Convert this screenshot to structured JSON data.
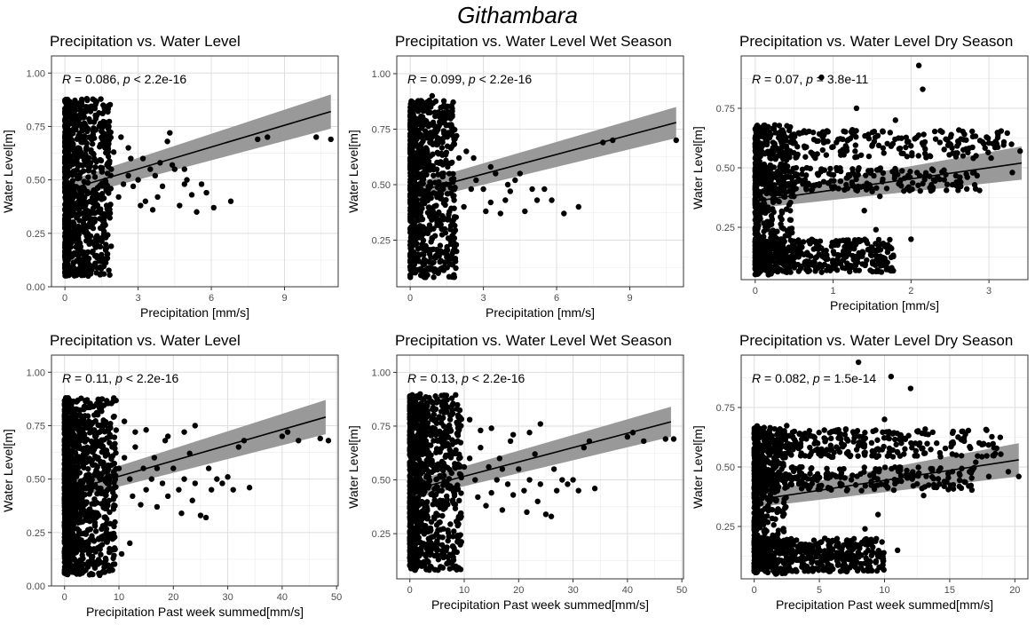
{
  "figure": {
    "title": "Githambara"
  },
  "chart_data": [
    {
      "type": "scatter",
      "title": "Precipitation vs. Water Level",
      "xlabel": "Precipitation [mm/s]",
      "ylabel": "Water Level[m]",
      "annotation": {
        "r_label": "R",
        "r_text": " = 0.086, ",
        "p_label": "p",
        "p_text": " < 2.2e-16"
      },
      "xlim": [
        -0.55,
        11.2
      ],
      "ylim": [
        0.0,
        1.08
      ],
      "xticks": [
        0,
        3,
        6,
        9
      ],
      "xtick_labels": [
        "0",
        "3",
        "6",
        "9"
      ],
      "yticks": [
        0.0,
        0.25,
        0.5,
        0.75,
        1.0
      ],
      "ytick_labels": [
        "0.00",
        "0.25",
        "0.50",
        "0.75",
        "1.00"
      ],
      "grid": true,
      "fit": {
        "x0": 0,
        "y0": 0.45,
        "x1": 10.9,
        "y1": 0.82,
        "band_start": 0.04,
        "band_end": 0.08
      },
      "cloud": {
        "x_max": 1.9,
        "ymin": 0.05,
        "ymax": 0.88,
        "density": 900
      },
      "outliers": [
        [
          1.05,
          0.58
        ],
        [
          1.2,
          0.6
        ],
        [
          1.5,
          0.55
        ],
        [
          1.7,
          0.45
        ],
        [
          1.9,
          0.55
        ],
        [
          2.0,
          0.63
        ],
        [
          2.2,
          0.42
        ],
        [
          2.4,
          0.48
        ],
        [
          2.6,
          0.52
        ],
        [
          2.8,
          0.47
        ],
        [
          3.0,
          0.5
        ],
        [
          3.1,
          0.38
        ],
        [
          3.3,
          0.4
        ],
        [
          3.5,
          0.55
        ],
        [
          3.6,
          0.36
        ],
        [
          3.8,
          0.42
        ],
        [
          4.0,
          0.47
        ],
        [
          4.2,
          0.68
        ],
        [
          4.3,
          0.72
        ],
        [
          4.5,
          0.55
        ],
        [
          4.7,
          0.38
        ],
        [
          4.9,
          0.48
        ],
        [
          5.0,
          0.5
        ],
        [
          5.2,
          0.43
        ],
        [
          5.4,
          0.35
        ],
        [
          5.6,
          0.48
        ],
        [
          6.1,
          0.37
        ],
        [
          6.8,
          0.4
        ],
        [
          7.9,
          0.69
        ],
        [
          8.3,
          0.7
        ],
        [
          10.3,
          0.7
        ],
        [
          10.9,
          0.69
        ],
        [
          2.7,
          0.6
        ],
        [
          3.9,
          0.58
        ],
        [
          1.8,
          0.75
        ],
        [
          2.3,
          0.7
        ],
        [
          2.6,
          0.65
        ],
        [
          1.3,
          0.8
        ],
        [
          0.9,
          0.88
        ],
        [
          1.0,
          0.2
        ],
        [
          1.5,
          0.15
        ],
        [
          1.7,
          0.18
        ],
        [
          1.4,
          0.12
        ],
        [
          3.2,
          0.6
        ],
        [
          3.7,
          0.52
        ],
        [
          4.4,
          0.57
        ],
        [
          4.9,
          0.55
        ],
        [
          5.8,
          0.44
        ]
      ]
    },
    {
      "type": "scatter",
      "title": "Precipitation vs. Water Level Wet Season",
      "xlabel": "Precipitation [mm/s]",
      "ylabel": "Water Level[m]",
      "annotation": {
        "r_label": "R",
        "r_text": " = 0.099, ",
        "p_label": "p",
        "p_text": " < 2.2e-16"
      },
      "xlim": [
        -0.55,
        11.2
      ],
      "ylim": [
        0.04,
        1.08
      ],
      "xticks": [
        0,
        3,
        6,
        9
      ],
      "xtick_labels": [
        "0",
        "3",
        "6",
        "9"
      ],
      "yticks": [
        0.25,
        0.5,
        0.75,
        1.0
      ],
      "ytick_labels": [
        "0.25",
        "0.50",
        "0.75",
        "1.00"
      ],
      "grid": true,
      "fit": {
        "x0": 0,
        "y0": 0.46,
        "x1": 10.9,
        "y1": 0.78,
        "band_start": 0.04,
        "band_end": 0.07
      },
      "cloud": {
        "x_max": 1.9,
        "ymin": 0.08,
        "ymax": 0.88,
        "density": 800
      },
      "outliers": [
        [
          1.1,
          0.6
        ],
        [
          1.3,
          0.55
        ],
        [
          1.6,
          0.5
        ],
        [
          1.8,
          0.43
        ],
        [
          2.0,
          0.62
        ],
        [
          2.2,
          0.4
        ],
        [
          2.5,
          0.48
        ],
        [
          2.7,
          0.52
        ],
        [
          3.0,
          0.48
        ],
        [
          3.1,
          0.38
        ],
        [
          3.3,
          0.42
        ],
        [
          3.5,
          0.55
        ],
        [
          3.7,
          0.37
        ],
        [
          3.9,
          0.43
        ],
        [
          4.1,
          0.47
        ],
        [
          4.3,
          0.52
        ],
        [
          4.5,
          0.55
        ],
        [
          4.7,
          0.38
        ],
        [
          5.0,
          0.48
        ],
        [
          5.2,
          0.43
        ],
        [
          5.5,
          0.48
        ],
        [
          5.8,
          0.43
        ],
        [
          6.3,
          0.37
        ],
        [
          6.9,
          0.4
        ],
        [
          7.9,
          0.69
        ],
        [
          8.3,
          0.7
        ],
        [
          10.9,
          0.7
        ],
        [
          2.6,
          0.62
        ],
        [
          1.9,
          0.72
        ],
        [
          2.3,
          0.65
        ],
        [
          1.4,
          0.78
        ],
        [
          0.9,
          0.9
        ],
        [
          1.0,
          0.12
        ],
        [
          1.4,
          0.13
        ],
        [
          3.3,
          0.58
        ],
        [
          4.0,
          0.5
        ]
      ]
    },
    {
      "type": "scatter",
      "title": "Precipitation vs. Water Level Dry Season",
      "xlabel": "Precipitation [mm/s]",
      "ylabel": "Water Level[m]",
      "annotation": {
        "r_label": "R",
        "r_text": " = 0.07, ",
        "p_label": "p",
        "p_text": " = 3.8e-11"
      },
      "xlim": [
        -0.18,
        3.5
      ],
      "ylim": [
        0.03,
        0.97
      ],
      "xticks": [
        0,
        1,
        2,
        3
      ],
      "xtick_labels": [
        "0",
        "1",
        "2",
        "3"
      ],
      "yticks": [
        0.25,
        0.5,
        0.75
      ],
      "ytick_labels": [
        "0.25",
        "0.50",
        "0.75"
      ],
      "grid": true,
      "fit": {
        "x0": 0,
        "y0": 0.36,
        "x1": 3.42,
        "y1": 0.52,
        "band_start": 0.03,
        "band_end": 0.07
      },
      "bands": [
        {
          "x_max": 3.3,
          "y": 0.6,
          "spread": 0.06,
          "n": 260
        },
        {
          "x_max": 2.9,
          "y": 0.45,
          "spread": 0.05,
          "n": 240
        },
        {
          "x_max": 1.8,
          "y": 0.13,
          "spread": 0.07,
          "n": 420
        }
      ],
      "cloud": {
        "x_max": 0.5,
        "ymin": 0.05,
        "ymax": 0.68,
        "density": 500
      },
      "outliers": [
        [
          0.85,
          0.88
        ],
        [
          1.3,
          0.75
        ],
        [
          1.55,
          0.24
        ],
        [
          1.7,
          0.16
        ],
        [
          1.8,
          0.7
        ],
        [
          2.1,
          0.93
        ],
        [
          2.15,
          0.83
        ],
        [
          2.4,
          0.65
        ],
        [
          2.0,
          0.2
        ],
        [
          1.9,
          0.56
        ],
        [
          2.8,
          0.54
        ],
        [
          3.3,
          0.48
        ],
        [
          3.4,
          0.57
        ],
        [
          1.4,
          0.32
        ],
        [
          1.6,
          0.38
        ],
        [
          2.5,
          0.6
        ],
        [
          3.1,
          0.6
        ]
      ]
    },
    {
      "type": "scatter",
      "title": "Precipitation vs. Water Level",
      "xlabel": "Precipitation Past week summed[mm/s]",
      "ylabel": "Water Level[m]",
      "annotation": {
        "r_label": "R",
        "r_text": " = 0.11, ",
        "p_label": "p",
        "p_text": " < 2.2e-16"
      },
      "xlim": [
        -2.4,
        50.3
      ],
      "ylim": [
        0.0,
        1.08
      ],
      "xticks": [
        0,
        10,
        20,
        30,
        40,
        50
      ],
      "xtick_labels": [
        "0",
        "10",
        "20",
        "30",
        "40",
        "50"
      ],
      "yticks": [
        0.0,
        0.25,
        0.5,
        0.75,
        1.0
      ],
      "ytick_labels": [
        "0.00",
        "0.25",
        "0.50",
        "0.75",
        "1.00"
      ],
      "grid": true,
      "fit": {
        "x0": 0,
        "y0": 0.44,
        "x1": 48,
        "y1": 0.79,
        "band_start": 0.04,
        "band_end": 0.08
      },
      "cloud": {
        "x_max": 9.5,
        "ymin": 0.05,
        "ymax": 0.88,
        "density": 1100
      },
      "outliers": [
        [
          10,
          0.55
        ],
        [
          11,
          0.6
        ],
        [
          12,
          0.5
        ],
        [
          12.5,
          0.42
        ],
        [
          13,
          0.65
        ],
        [
          14,
          0.38
        ],
        [
          14.5,
          0.55
        ],
        [
          15,
          0.45
        ],
        [
          16,
          0.5
        ],
        [
          16.5,
          0.6
        ],
        [
          17,
          0.37
        ],
        [
          18,
          0.48
        ],
        [
          18.5,
          0.68
        ],
        [
          19,
          0.42
        ],
        [
          20,
          0.55
        ],
        [
          21,
          0.45
        ],
        [
          21.5,
          0.34
        ],
        [
          22,
          0.5
        ],
        [
          23,
          0.62
        ],
        [
          23.5,
          0.4
        ],
        [
          24,
          0.48
        ],
        [
          25,
          0.33
        ],
        [
          26,
          0.32
        ],
        [
          26.5,
          0.55
        ],
        [
          27,
          0.45
        ],
        [
          28,
          0.5
        ],
        [
          30,
          0.51
        ],
        [
          31,
          0.45
        ],
        [
          32,
          0.65
        ],
        [
          33,
          0.68
        ],
        [
          34,
          0.46
        ],
        [
          40,
          0.7
        ],
        [
          41,
          0.72
        ],
        [
          43,
          0.68
        ],
        [
          47,
          0.69
        ],
        [
          48.5,
          0.68
        ],
        [
          11,
          0.77
        ],
        [
          13,
          0.72
        ],
        [
          15,
          0.73
        ],
        [
          19,
          0.7
        ],
        [
          22,
          0.72
        ],
        [
          24,
          0.75
        ],
        [
          12,
          0.2
        ],
        [
          10.5,
          0.15
        ],
        [
          17,
          0.55
        ],
        [
          29,
          0.48
        ]
      ]
    },
    {
      "type": "scatter",
      "title": "Precipitation vs. Water Level Wet Season",
      "xlabel": "Precipitation Past week summed[mm/s]",
      "ylabel": "Water Level[m]",
      "annotation": {
        "r_label": "R",
        "r_text": " = 0.13, ",
        "p_label": "p",
        "p_text": " < 2.2e-16"
      },
      "xlim": [
        -2.4,
        50.3
      ],
      "ylim": [
        0.04,
        1.08
      ],
      "xticks": [
        0,
        10,
        20,
        30,
        40,
        50
      ],
      "xtick_labels": [
        "0",
        "10",
        "20",
        "30",
        "40",
        "50"
      ],
      "yticks": [
        0.25,
        0.5,
        0.75,
        1.0
      ],
      "ytick_labels": [
        "0.25",
        "0.50",
        "0.75",
        "1.00"
      ],
      "grid": true,
      "fit": {
        "x0": 0,
        "y0": 0.45,
        "x1": 48,
        "y1": 0.77,
        "band_start": 0.04,
        "band_end": 0.07
      },
      "cloud": {
        "x_max": 9.5,
        "ymin": 0.08,
        "ymax": 0.9,
        "density": 1000
      },
      "outliers": [
        [
          10,
          0.56
        ],
        [
          11,
          0.6
        ],
        [
          12,
          0.5
        ],
        [
          12.5,
          0.42
        ],
        [
          13,
          0.65
        ],
        [
          14,
          0.38
        ],
        [
          14.5,
          0.56
        ],
        [
          15,
          0.44
        ],
        [
          16,
          0.5
        ],
        [
          16.5,
          0.6
        ],
        [
          17,
          0.36
        ],
        [
          18,
          0.48
        ],
        [
          18.5,
          0.68
        ],
        [
          19,
          0.43
        ],
        [
          20,
          0.55
        ],
        [
          21,
          0.45
        ],
        [
          21.5,
          0.35
        ],
        [
          22,
          0.5
        ],
        [
          23,
          0.62
        ],
        [
          23.5,
          0.4
        ],
        [
          24,
          0.48
        ],
        [
          25,
          0.34
        ],
        [
          26,
          0.33
        ],
        [
          26.5,
          0.55
        ],
        [
          27,
          0.45
        ],
        [
          28,
          0.5
        ],
        [
          30,
          0.5
        ],
        [
          31,
          0.45
        ],
        [
          32,
          0.65
        ],
        [
          33,
          0.68
        ],
        [
          34,
          0.46
        ],
        [
          40,
          0.7
        ],
        [
          41,
          0.72
        ],
        [
          43,
          0.68
        ],
        [
          47,
          0.69
        ],
        [
          48.5,
          0.69
        ],
        [
          11,
          0.78
        ],
        [
          13,
          0.73
        ],
        [
          15,
          0.74
        ],
        [
          19,
          0.71
        ],
        [
          22,
          0.72
        ],
        [
          24,
          0.76
        ],
        [
          7,
          0.14
        ],
        [
          5,
          0.15
        ],
        [
          17,
          0.55
        ],
        [
          29,
          0.48
        ]
      ]
    },
    {
      "type": "scatter",
      "title": "Precipitation vs. Water Level Dry Season",
      "xlabel": "Precipitation Past week summed[mm/s]",
      "ylabel": "Water Level[m]",
      "annotation": {
        "r_label": "R",
        "r_text": " = 0.082, ",
        "p_label": "p",
        "p_text": " = 1.5e-14"
      },
      "xlim": [
        -1.0,
        21.0
      ],
      "ylim": [
        0.03,
        0.97
      ],
      "xticks": [
        0,
        5,
        10,
        15,
        20
      ],
      "xtick_labels": [
        "0",
        "5",
        "10",
        "15",
        "20"
      ],
      "yticks": [
        0.25,
        0.5,
        0.75
      ],
      "ytick_labels": [
        "0.25",
        "0.50",
        "0.75"
      ],
      "grid": true,
      "fit": {
        "x0": 0,
        "y0": 0.36,
        "x1": 20.3,
        "y1": 0.53,
        "band_start": 0.03,
        "band_end": 0.07
      },
      "bands": [
        {
          "x_max": 19,
          "y": 0.6,
          "spread": 0.06,
          "n": 300
        },
        {
          "x_max": 17,
          "y": 0.45,
          "spread": 0.05,
          "n": 260
        },
        {
          "x_max": 10,
          "y": 0.13,
          "spread": 0.07,
          "n": 460
        }
      ],
      "cloud": {
        "x_max": 2.5,
        "ymin": 0.05,
        "ymax": 0.68,
        "density": 500
      },
      "outliers": [
        [
          8,
          0.94
        ],
        [
          10.5,
          0.88
        ],
        [
          12,
          0.83
        ],
        [
          10,
          0.7
        ],
        [
          9.5,
          0.3
        ],
        [
          8.5,
          0.24
        ],
        [
          9,
          0.18
        ],
        [
          11,
          0.15
        ],
        [
          12.5,
          0.65
        ],
        [
          14,
          0.6
        ],
        [
          15.5,
          0.55
        ],
        [
          17,
          0.52
        ],
        [
          18,
          0.46
        ],
        [
          19.5,
          0.48
        ],
        [
          20.3,
          0.46
        ],
        [
          16,
          0.65
        ],
        [
          13,
          0.38
        ],
        [
          11.5,
          0.62
        ]
      ]
    }
  ]
}
